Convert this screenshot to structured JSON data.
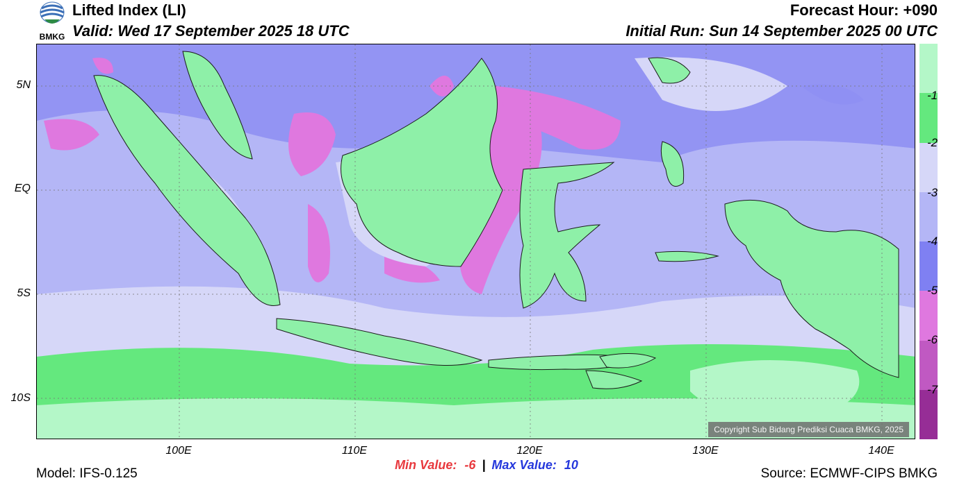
{
  "header": {
    "title": "Lifted Index (LI)",
    "valid": "Valid: Wed 17 September 2025 18 UTC",
    "forecast_hour": "Forecast Hour: +090",
    "initial_run": "Initial Run: Sun 14 September 2025 00 UTC",
    "logo_text": "BMKG"
  },
  "map": {
    "lat_labels": [
      "5N",
      "EQ",
      "5S",
      "10S"
    ],
    "lon_labels": [
      "100E",
      "110E",
      "120E",
      "130E",
      "140E"
    ],
    "copyright": "Copyright Sub Bidang Prediksi Cuaca BMKG, 2025"
  },
  "colorbar": {
    "labels": [
      "-1",
      "-2",
      "-3",
      "-4",
      "-5",
      "-6",
      "-7"
    ],
    "colors": [
      "#b4f7c8",
      "#64e87e",
      "#d6d7f8",
      "#b4b6f6",
      "#7f80f2",
      "#df78df",
      "#c059c2",
      "#962d96"
    ]
  },
  "stats": {
    "min_label": "Min Value:",
    "min_value": "-6",
    "separator": "|",
    "max_label": "Max Value:",
    "max_value": "10",
    "min_color": "#e8383d",
    "max_color": "#2538dc"
  },
  "footer": {
    "model": "Model: IFS-0.125",
    "source": "Source: ECMWF-CIPS BMKG"
  }
}
